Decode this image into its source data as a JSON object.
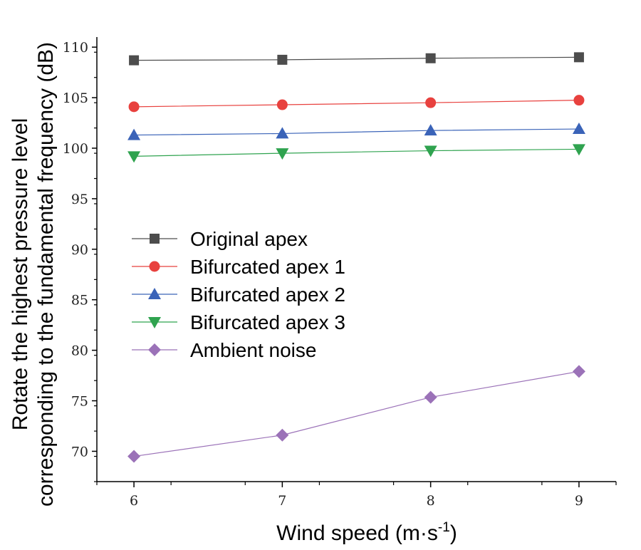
{
  "chart_data": {
    "type": "line",
    "x": [
      6,
      7,
      8,
      9
    ],
    "xlabel": "Wind speed (m·s",
    "xlabel_sup": "-1",
    "xlabel_suffix": ")",
    "ylabel_line1": "Rotate the highest pressure level",
    "ylabel_line2": "corresponding to the fundamental frequency (dB)",
    "xlim": [
      5.75,
      9.25
    ],
    "ylim": [
      67,
      111
    ],
    "xticks": [
      6,
      7,
      8,
      9
    ],
    "yticks": [
      70,
      75,
      80,
      85,
      90,
      95,
      100,
      105,
      110
    ],
    "legend_position": "center-left",
    "series": [
      {
        "name": "Original apex",
        "marker": "square",
        "color": "#4d4d4d",
        "values": [
          108.7,
          108.75,
          108.9,
          109.0
        ]
      },
      {
        "name": "Bifurcated apex 1",
        "marker": "circle",
        "color": "#e8413e",
        "values": [
          104.1,
          104.3,
          104.5,
          104.75
        ]
      },
      {
        "name": "Bifurcated apex 2",
        "marker": "triangle-up",
        "color": "#3a63b8",
        "values": [
          101.3,
          101.45,
          101.75,
          101.9
        ]
      },
      {
        "name": "Bifurcated apex 3",
        "marker": "triangle-down",
        "color": "#2fa34f",
        "values": [
          99.2,
          99.5,
          99.75,
          99.9
        ]
      },
      {
        "name": "Ambient noise",
        "marker": "diamond",
        "color": "#9b72b8",
        "values": [
          69.5,
          71.6,
          75.35,
          77.9
        ]
      }
    ]
  }
}
